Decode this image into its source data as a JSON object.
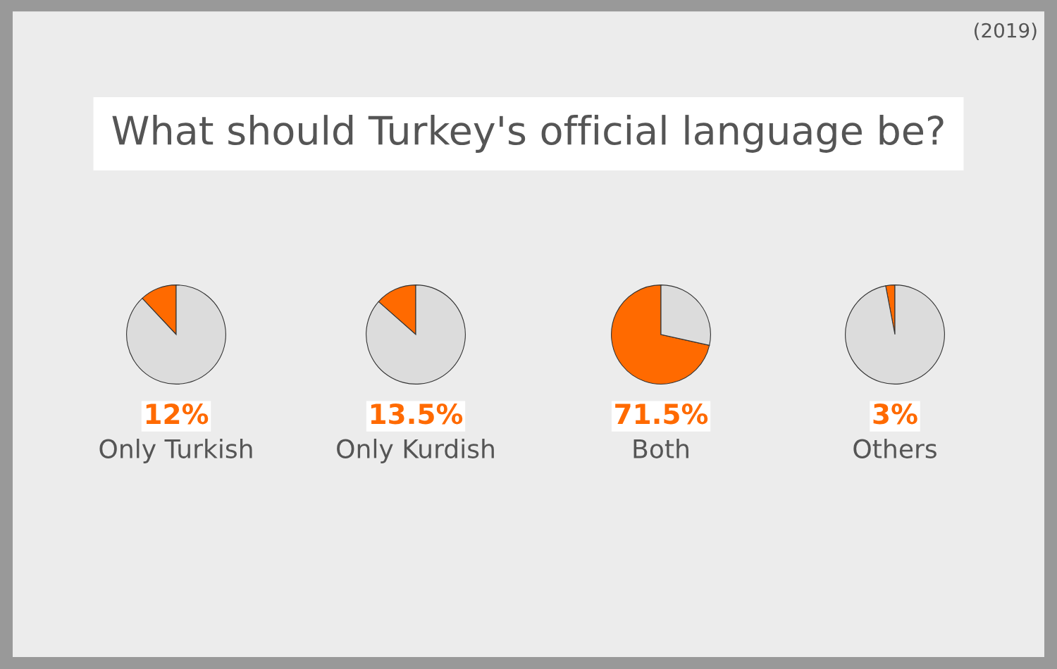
{
  "chart_data": [
    {
      "type": "pie",
      "title": "Only Turkish",
      "annotations": [
        "What should Turkey's official language be?",
        "(2019)",
        "12%"
      ],
      "categories": [
        null,
        null
      ],
      "values": [
        12,
        88
      ],
      "colors": [
        "#ff6a00",
        "#dcdcdc"
      ]
    },
    {
      "type": "pie",
      "title": "Only Kurdish",
      "annotations": [
        "13.5%"
      ],
      "categories": [
        null,
        null
      ],
      "values": [
        13.5,
        86.5
      ],
      "colors": [
        "#ff6a00",
        "#dcdcdc"
      ]
    },
    {
      "type": "pie",
      "title": "Both",
      "annotations": [
        "71.5%"
      ],
      "categories": [
        null,
        null
      ],
      "values": [
        71.5,
        28.5
      ],
      "colors": [
        "#ff6a00",
        "#dcdcdc"
      ]
    },
    {
      "type": "pie",
      "title": "Others",
      "annotations": [
        "3%"
      ],
      "categories": [
        null,
        null
      ],
      "values": [
        3,
        97
      ],
      "colors": [
        "#ff6a00",
        "#dcdcdc"
      ]
    }
  ]
}
